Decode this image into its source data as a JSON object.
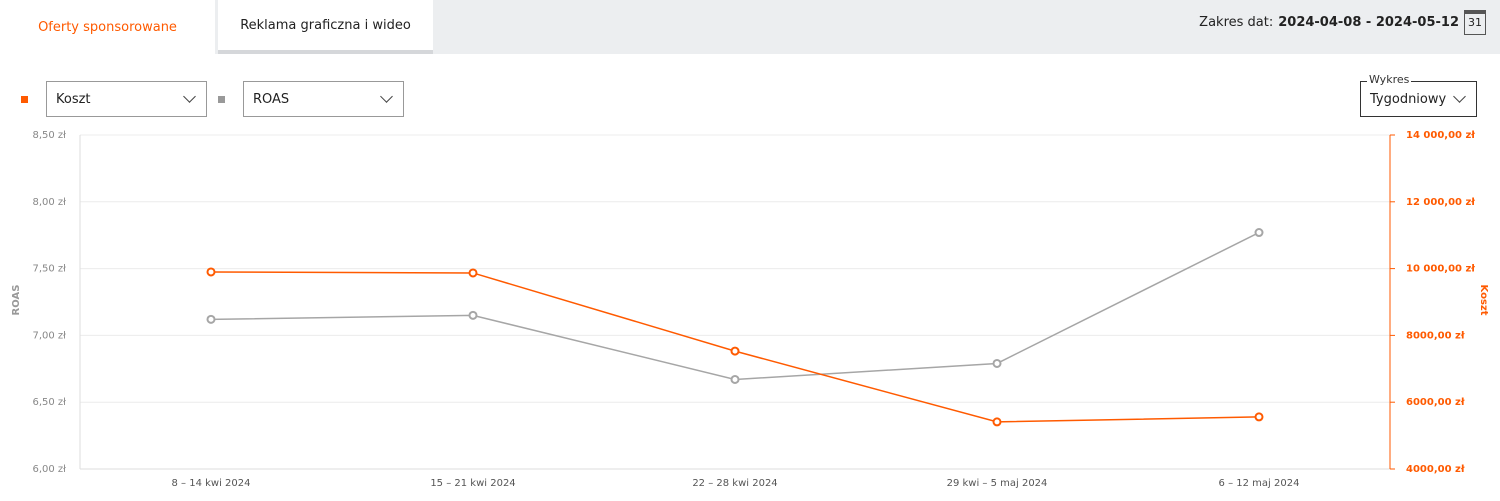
{
  "tabs": [
    "Oferty sponsorowane",
    "Reklama graficzna i wideo"
  ],
  "date_range": {
    "label": "Zakres dat:",
    "value": "2024-04-08 - 2024-05-12",
    "calendar_day": "31"
  },
  "chart_select": {
    "label": "Wykres",
    "value": "Tygodniowy"
  },
  "chart_data": {
    "type": "line",
    "categories": [
      "8 – 14 kwi 2024",
      "15 – 21 kwi 2024",
      "22 – 28 kwi 2024",
      "29 kwi – 5 maj 2024",
      "6 – 12 maj 2024"
    ],
    "series": [
      {
        "name": "Koszt",
        "color": "#ff5a00",
        "axis": "y2",
        "values": [
          9900,
          9870,
          7530,
          5410,
          5560
        ]
      },
      {
        "name": "ROAS",
        "color": "#a6a6a6",
        "values": [
          7.12,
          7.15,
          6.67,
          6.79,
          7.77
        ]
      }
    ],
    "ylabel": "ROAS",
    "y2label": "Koszt",
    "ylim": [
      6,
      8.5
    ],
    "yticks": [
      {
        "value": 6,
        "label": "6,00 zł"
      },
      {
        "value": 6.5,
        "label": "6,50 zł"
      },
      {
        "value": 7,
        "label": "7,00 zł"
      },
      {
        "value": 7.5,
        "label": "7,50 zł"
      },
      {
        "value": 8,
        "label": "8,00 zł"
      },
      {
        "value": 8.5,
        "label": "8,50 zł"
      }
    ],
    "y2lim": [
      4000,
      14000
    ],
    "y2ticks": [
      {
        "value": 4000,
        "label": "4000,00 zł"
      },
      {
        "value": 6000,
        "label": "6000,00 zł"
      },
      {
        "value": 8000,
        "label": "8000,00 zł"
      },
      {
        "value": 10000,
        "label": "10 000,00 zł"
      },
      {
        "value": 12000,
        "label": "12 000,00 zł"
      },
      {
        "value": 14000,
        "label": "14 000,00 zł"
      }
    ],
    "grid": true
  }
}
